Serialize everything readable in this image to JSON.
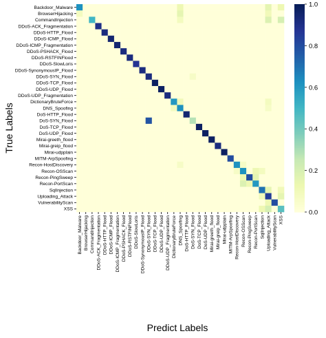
{
  "chart_data": {
    "type": "heatmap",
    "xlabel": "Predict Labels",
    "ylabel": "True Labels",
    "labels": [
      "Backdoor_Malware",
      "BrowserHijacking",
      "CommandInjection",
      "DDoS-ACK_Fragmentation",
      "DDoS-HTTP_Flood",
      "DDoS-ICMP_Flood",
      "DDoS-ICMP_Fragmentation",
      "DDoS-PSHACK_Flood",
      "DDoS-RSTFINFlood",
      "DDoS-SlowLoris",
      "DDoS-SynonymousIP_Flood",
      "DDoS-SYN_Flood",
      "DDoS-TCP_Flood",
      "DDoS-UDP_Flood",
      "DDoS-UDP_Fragmentation",
      "DictionaryBruteForce",
      "DNS_Spoofing",
      "DoS-HTTP_Flood",
      "DoS-SYN_Flood",
      "DoS-TCP_Flood",
      "DoS-UDP_Flood",
      "Mirai-greeth_flood",
      "Mirai-greip_flood",
      "Mirai-udpplain",
      "MITM-ArpSpoofing",
      "Recon-HostDiscovery",
      "Recon-OSScan",
      "Recon-PingSweep",
      "Recon-PortScan",
      "SqlInjection",
      "Uploading_Attack",
      "VulnerabilityScan",
      "XSS"
    ],
    "diagonal": [
      0.62,
      0.0,
      0.5,
      0.9,
      0.92,
      0.95,
      0.95,
      0.92,
      0.92,
      0.88,
      0.92,
      0.92,
      0.98,
      0.98,
      0.92,
      0.6,
      0.62,
      0.95,
      0.28,
      0.98,
      0.98,
      0.98,
      0.92,
      0.98,
      0.8,
      0.62,
      0.62,
      0.8,
      0.6,
      0.7,
      0.85,
      0.8,
      0.45
    ],
    "off_diagonal": [
      {
        "row": 0,
        "col": 16,
        "value": 0.12
      },
      {
        "row": 0,
        "col": 30,
        "value": 0.15
      },
      {
        "row": 0,
        "col": 32,
        "value": 0.12
      },
      {
        "row": 1,
        "col": 0,
        "value": 0.08
      },
      {
        "row": 1,
        "col": 16,
        "value": 0.15
      },
      {
        "row": 1,
        "col": 30,
        "value": 0.1
      },
      {
        "row": 2,
        "col": 16,
        "value": 0.08
      },
      {
        "row": 2,
        "col": 30,
        "value": 0.18
      },
      {
        "row": 2,
        "col": 32,
        "value": 0.2
      },
      {
        "row": 15,
        "col": 16,
        "value": 0.1
      },
      {
        "row": 15,
        "col": 30,
        "value": 0.08
      },
      {
        "row": 16,
        "col": 15,
        "value": 0.08
      },
      {
        "row": 16,
        "col": 30,
        "value": 0.06
      },
      {
        "row": 18,
        "col": 11,
        "value": 0.78
      },
      {
        "row": 11,
        "col": 18,
        "value": 0.06
      },
      {
        "row": 25,
        "col": 16,
        "value": 0.06
      },
      {
        "row": 25,
        "col": 26,
        "value": 0.06
      },
      {
        "row": 26,
        "col": 25,
        "value": 0.06
      },
      {
        "row": 26,
        "col": 28,
        "value": 0.12
      },
      {
        "row": 26,
        "col": 29,
        "value": 0.08
      },
      {
        "row": 27,
        "col": 26,
        "value": 0.12
      },
      {
        "row": 27,
        "col": 28,
        "value": 0.15
      },
      {
        "row": 28,
        "col": 26,
        "value": 0.18
      },
      {
        "row": 28,
        "col": 27,
        "value": 0.12
      },
      {
        "row": 29,
        "col": 30,
        "value": 0.15
      },
      {
        "row": 29,
        "col": 32,
        "value": 0.1
      },
      {
        "row": 30,
        "col": 29,
        "value": 0.1
      },
      {
        "row": 30,
        "col": 32,
        "value": 0.15
      },
      {
        "row": 31,
        "col": 30,
        "value": 0.12
      },
      {
        "row": 32,
        "col": 29,
        "value": 0.12
      },
      {
        "row": 32,
        "col": 30,
        "value": 0.2
      }
    ],
    "colorbar": {
      "range": [
        0.0,
        1.0
      ],
      "ticks": [
        "0.0",
        "0.2",
        "0.4",
        "0.6",
        "0.8",
        "1.0"
      ],
      "colormap": "YlGnBu"
    }
  }
}
